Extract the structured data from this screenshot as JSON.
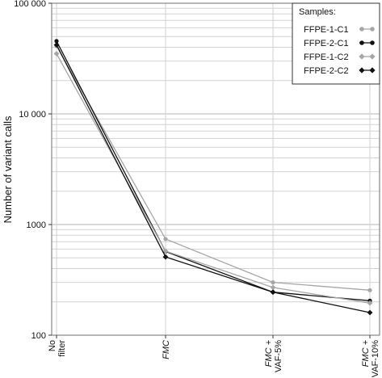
{
  "chart_data": {
    "type": "line",
    "ylabel": "Number of variant calls",
    "yscale": "log",
    "ylim": [
      100,
      100000
    ],
    "y_ticks": [
      {
        "value": 100,
        "label": "100"
      },
      {
        "value": 1000,
        "label": "1000"
      },
      {
        "value": 10000,
        "label": "10 000"
      },
      {
        "value": 100000,
        "label": "100 000"
      }
    ],
    "categories": [
      {
        "lines": [
          "No",
          "filter"
        ],
        "italic": [
          false,
          false
        ]
      },
      {
        "lines": [
          "FMC"
        ],
        "italic": [
          true
        ]
      },
      {
        "lines": [
          "FMC +",
          "VAF-5%"
        ],
        "italic": [
          true,
          false
        ]
      },
      {
        "lines": [
          "FMC +",
          "VAF-10%"
        ],
        "italic": [
          true,
          false
        ]
      }
    ],
    "grid": true,
    "legend": {
      "title": "Samples:",
      "position": "top-right"
    },
    "series": [
      {
        "name": "FFPE-1-C1",
        "color": "#a6a6a6",
        "marker": "circle",
        "values": [
          41000,
          740,
          300,
          255
        ]
      },
      {
        "name": "FFPE-2-C1",
        "color": "#111111",
        "marker": "circle",
        "values": [
          45500,
          570,
          245,
          205
        ]
      },
      {
        "name": "FFPE-1-C2",
        "color": "#a6a6a6",
        "marker": "diamond",
        "values": [
          35000,
          575,
          270,
          195
        ]
      },
      {
        "name": "FFPE-2-C2",
        "color": "#111111",
        "marker": "diamond",
        "values": [
          42000,
          510,
          245,
          160
        ]
      }
    ]
  }
}
